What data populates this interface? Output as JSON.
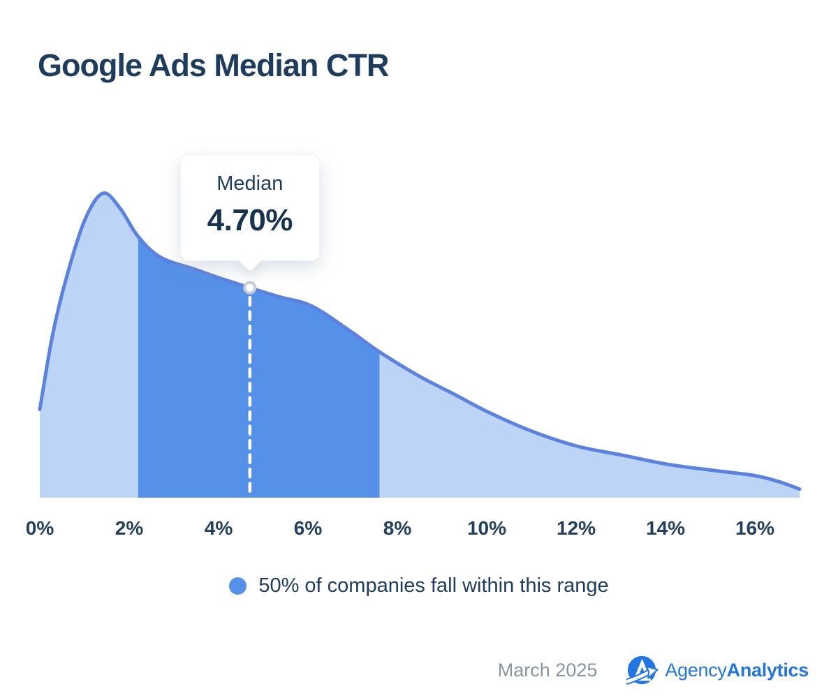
{
  "header": {
    "title": "Google Ads Median CTR"
  },
  "tooltip": {
    "label": "Median",
    "value": "4.70%"
  },
  "legend": {
    "label": "50% of companies fall within this range"
  },
  "footer": {
    "date": "March 2025",
    "brand_regular": "Agency",
    "brand_bold": "Analytics",
    "logo_icon": "agency-analytics-arrow-a-icon"
  },
  "colors": {
    "title_text": "#1d3c5e",
    "axis_text": "#22405e",
    "fill_light": "#bcd4f6",
    "fill_dark": "#5591e8",
    "stroke": "#5b82e0",
    "median_line": "#ffffff",
    "marker_fill": "#ffffff",
    "marker_ring": "#c9ced6",
    "date_text": "#8b939e",
    "brand_blue": "#2276e4"
  },
  "chart_data": {
    "type": "area",
    "title": "Google Ads Median CTR",
    "xlabel": "",
    "ylabel": "",
    "xlim": [
      0,
      17
    ],
    "grid": false,
    "x_ticks": [
      "0%",
      "2%",
      "4%",
      "6%",
      "8%",
      "10%",
      "12%",
      "14%",
      "16%"
    ],
    "x_tick_values": [
      0,
      2,
      4,
      6,
      8,
      10,
      12,
      14,
      16
    ],
    "median_value": 4.7,
    "median_label": "4.70%",
    "iqr_range": [
      2.2,
      7.6
    ],
    "iqr_note": "50% of companies fall within this range",
    "density": {
      "x": [
        0,
        0.28,
        0.59,
        1.0,
        1.41,
        1.8,
        2.19,
        2.7,
        3.48,
        4.06,
        4.7,
        5.36,
        6.08,
        6.92,
        7.59,
        8.48,
        9.27,
        10.05,
        10.98,
        12.0,
        13.02,
        14.03,
        15.05,
        15.98,
        16.53,
        17.0
      ],
      "y": [
        0.29,
        0.53,
        0.72,
        0.91,
        1.0,
        0.95,
        0.86,
        0.79,
        0.75,
        0.72,
        0.69,
        0.66,
        0.63,
        0.55,
        0.48,
        0.4,
        0.34,
        0.28,
        0.22,
        0.17,
        0.14,
        0.11,
        0.09,
        0.073,
        0.053,
        0.028
      ]
    }
  }
}
